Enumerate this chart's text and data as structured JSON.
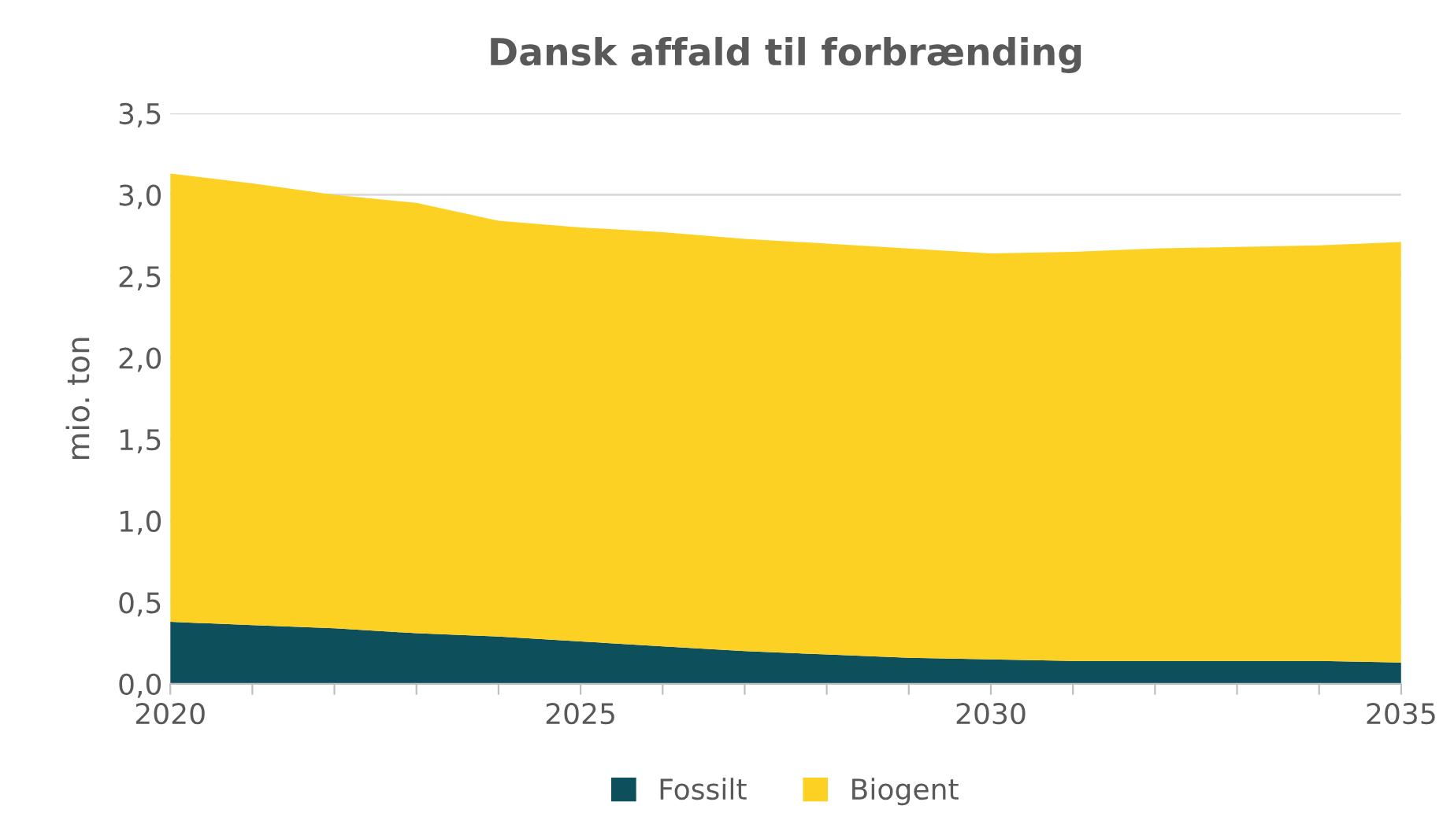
{
  "chart_data": {
    "type": "area",
    "stacked": true,
    "title": "Dansk affald til forbrænding",
    "ylabel": "mio. ton",
    "x": [
      2020,
      2021,
      2022,
      2023,
      2024,
      2025,
      2026,
      2027,
      2028,
      2029,
      2030,
      2031,
      2032,
      2033,
      2034,
      2035
    ],
    "series": [
      {
        "name": "Fossilt",
        "color": "#0d4f5a",
        "values": [
          0.38,
          0.36,
          0.34,
          0.31,
          0.29,
          0.26,
          0.23,
          0.2,
          0.18,
          0.16,
          0.15,
          0.14,
          0.14,
          0.14,
          0.14,
          0.13
        ]
      },
      {
        "name": "Biogent",
        "color": "#fdd123",
        "values": [
          2.75,
          2.71,
          2.66,
          2.64,
          2.55,
          2.54,
          2.54,
          2.53,
          2.52,
          2.51,
          2.49,
          2.51,
          2.53,
          2.54,
          2.55,
          2.58
        ]
      }
    ],
    "xlim": [
      2020,
      2035
    ],
    "xticks": [
      2020,
      {
        "value": 2021,
        "label": null
      },
      {
        "value": 2022,
        "label": null
      },
      {
        "value": 2023,
        "label": null
      },
      {
        "value": 2024,
        "label": null
      },
      2025,
      {
        "value": 2026,
        "label": null
      },
      {
        "value": 2027,
        "label": null
      },
      {
        "value": 2028,
        "label": null
      },
      {
        "value": 2029,
        "label": null
      },
      2030,
      {
        "value": 2031,
        "label": null
      },
      {
        "value": 2032,
        "label": null
      },
      {
        "value": 2033,
        "label": null
      },
      {
        "value": 2034,
        "label": null
      },
      2035
    ],
    "ylim": [
      0,
      3.5
    ],
    "yticks": [
      {
        "value": 0,
        "label": "0,0"
      },
      {
        "value": 0.5,
        "label": "0,5"
      },
      {
        "value": 1,
        "label": "1,0"
      },
      {
        "value": 1.5,
        "label": "1,5"
      },
      {
        "value": 2,
        "label": "2,0"
      },
      {
        "value": 2.5,
        "label": "2,5"
      },
      {
        "value": 3,
        "label": "3,0"
      },
      {
        "value": 3.5,
        "label": "3,5"
      }
    ],
    "grid": "y",
    "legend": "bottom"
  }
}
